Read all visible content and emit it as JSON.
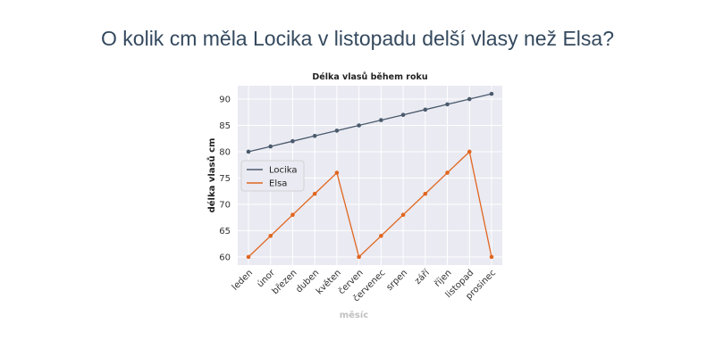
{
  "question": "O kolik cm měla Locika v listopadu delší vlasy než Elsa?",
  "colors": {
    "locika": "#4a5a6c",
    "elsa": "#e0661f",
    "plot_bg": "#eaeaf2",
    "grid": "#ffffff"
  },
  "chart_data": {
    "type": "line",
    "title": "Délka vlasů během roku",
    "xlabel": "měsíc",
    "ylabel": "délka vlasů cm",
    "categories": [
      "leden",
      "únor",
      "březen",
      "duben",
      "květen",
      "červen",
      "červenec",
      "srpen",
      "září",
      "říjen",
      "listopad",
      "prosinec"
    ],
    "series": [
      {
        "name": "Locika",
        "values": [
          80,
          81,
          82,
          83,
          84,
          85,
          86,
          87,
          88,
          89,
          90,
          91
        ]
      },
      {
        "name": "Elsa",
        "values": [
          60,
          64,
          68,
          72,
          76,
          60,
          64,
          68,
          72,
          76,
          80,
          60
        ]
      }
    ],
    "ylim": [
      58.45,
      92.55
    ],
    "yticks": [
      60,
      65,
      70,
      75,
      80,
      85,
      90
    ],
    "grid": true,
    "legend_position": "center-left"
  }
}
